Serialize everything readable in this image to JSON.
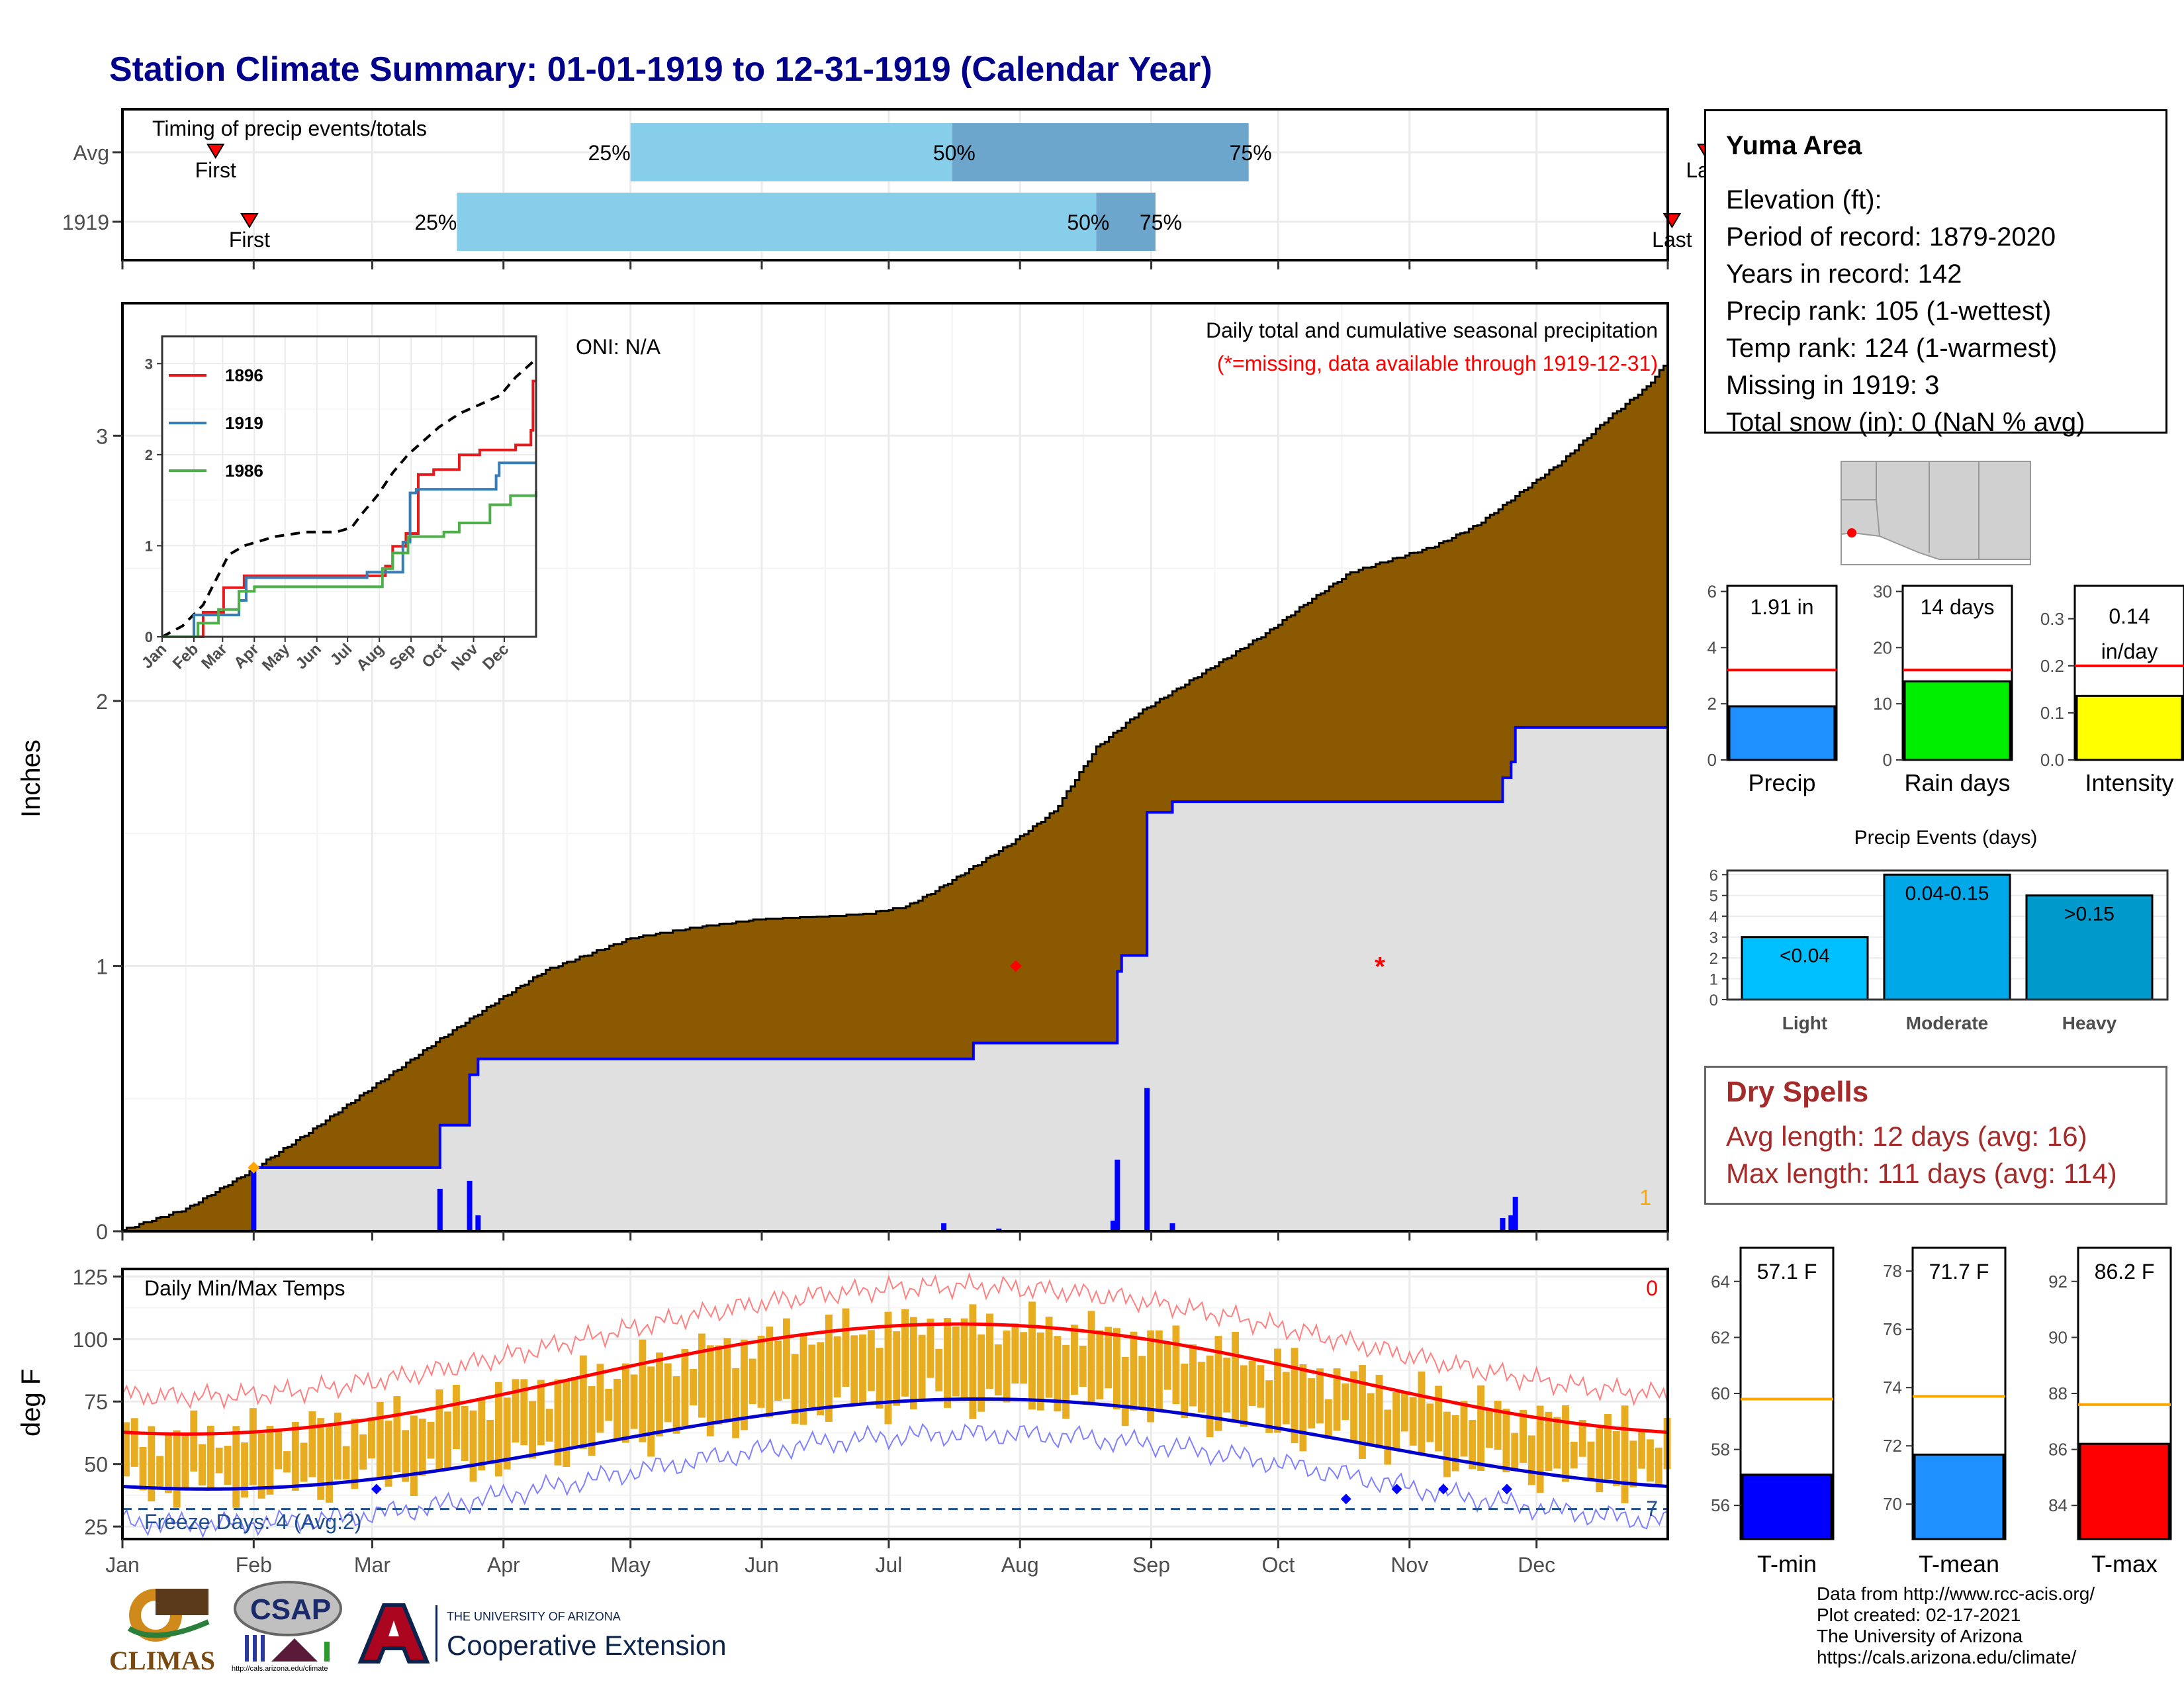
{
  "title": "Station Climate Summary: 01-01-1919 to 12-31-1919 (Calendar Year)",
  "timing": {
    "label": "Timing of precip events/totals",
    "rows": [
      {
        "name": "Avg",
        "first_day": 22,
        "last_day": 374,
        "p25": 120,
        "p50": 196,
        "p75": 266
      },
      {
        "name": "1919",
        "first_day": 30,
        "last_day": 366,
        "p25": 79,
        "p50": 230,
        "p75": 244
      }
    ],
    "first_label": "First",
    "last_label": "Last",
    "pct_labels": [
      "25%",
      "50%",
      "75%"
    ]
  },
  "precip_panel": {
    "ylabel": "Inches",
    "oni": "ONI: N/A",
    "title": "Daily total and cumulative seasonal precipitation",
    "subtitle": "(*=missing, data available through 1919-12-31)",
    "corner_count": "1",
    "y_ticks": [
      "0",
      "1",
      "2",
      "3"
    ],
    "ylim": [
      0,
      3.5
    ]
  },
  "inset": {
    "series": [
      {
        "name": "1896",
        "color": "#e41a1c"
      },
      {
        "name": "1919",
        "color": "#377eb8"
      },
      {
        "name": "1986",
        "color": "#4daf4a"
      }
    ],
    "y_ticks": [
      "0",
      "1",
      "2",
      "3"
    ],
    "x_ticks": [
      "Jan",
      "Feb",
      "Mar",
      "Apr",
      "May",
      "Jun",
      "Jul",
      "Aug",
      "Sep",
      "Oct",
      "Nov",
      "Dec"
    ]
  },
  "temp_panel": {
    "ylabel": "deg F",
    "title": "Daily Min/Max Temps",
    "corner_count": "0",
    "freeze_label": "Freeze Days: 4 (Avg:2)",
    "freeze_count": "7",
    "y_ticks": [
      "25",
      "50",
      "75",
      "100",
      "125"
    ],
    "ylim": [
      20,
      128
    ]
  },
  "months": [
    "Jan",
    "Feb",
    "Mar",
    "Apr",
    "May",
    "Jun",
    "Jul",
    "Aug",
    "Sep",
    "Oct",
    "Nov",
    "Dec"
  ],
  "station": {
    "name": "Yuma Area",
    "lines": [
      "Elevation (ft):",
      "Period of record: 1879-2020",
      "Years in record: 142",
      "Precip rank: 105 (1-wettest)",
      "Temp rank: 124 (1-warmest)",
      "Missing in 1919: 3",
      "Total snow (in): 0 (NaN % avg)"
    ]
  },
  "precip_bars": [
    {
      "label": "Precip",
      "value_text": "1.91 in",
      "value": 1.91,
      "avg": 3.2,
      "max": 6.2,
      "ticks": [
        "0",
        "2",
        "4",
        "6"
      ],
      "tick_values": [
        0,
        2,
        4,
        6
      ],
      "color": "#1e90ff"
    },
    {
      "label": "Rain days",
      "value_text": "14 days",
      "value": 14,
      "avg": 16,
      "max": 31,
      "ticks": [
        "0",
        "10",
        "20",
        "30"
      ],
      "tick_values": [
        0,
        10,
        20,
        30
      ],
      "color": "#00ee00"
    },
    {
      "label": "Intensity",
      "value_text": "0.14 in/day",
      "value": 0.136,
      "avg": 0.2,
      "max": 0.37,
      "ticks": [
        "0.0",
        "0.1",
        "0.2",
        "0.3"
      ],
      "tick_values": [
        0,
        0.1,
        0.2,
        0.3
      ],
      "color": "#ffff00"
    }
  ],
  "precip_events": {
    "title": "Precip Events (days)",
    "categories": [
      "Light",
      "Moderate",
      "Heavy"
    ],
    "range_labels": [
      "<0.04",
      "0.04-0.15",
      ">0.15"
    ],
    "values": [
      3,
      6,
      5
    ],
    "colors": [
      "#00bfff",
      "#00a8e8",
      "#0099cc"
    ],
    "y_ticks": [
      "0",
      "1",
      "2",
      "3",
      "4",
      "5",
      "6"
    ]
  },
  "dry_spells": {
    "title": "Dry Spells",
    "avg_line": "Avg length: 12 days (avg: 16)",
    "max_line": "Max length: 111 days (avg: 114)"
  },
  "temp_bars": [
    {
      "label": "T-min",
      "value_text": "57.1 F",
      "value": 57.1,
      "avg": 59.8,
      "min": 54.8,
      "max": 65.2,
      "ticks": [
        "56",
        "58",
        "60",
        "62",
        "64"
      ],
      "tick_values": [
        56,
        58,
        60,
        62,
        64
      ],
      "color": "#0000ff"
    },
    {
      "label": "T-mean",
      "value_text": "71.7 F",
      "value": 71.7,
      "avg": 73.7,
      "min": 68.8,
      "max": 78.8,
      "ticks": [
        "70",
        "72",
        "74",
        "76",
        "78"
      ],
      "tick_values": [
        70,
        72,
        74,
        76,
        78
      ],
      "color": "#1e90ff"
    },
    {
      "label": "T-max",
      "value_text": "86.2 F",
      "value": 86.2,
      "avg": 87.6,
      "min": 82.8,
      "max": 93.2,
      "ticks": [
        "84",
        "86",
        "88",
        "90",
        "92"
      ],
      "tick_values": [
        84,
        86,
        88,
        90,
        92
      ],
      "color": "#ff0000"
    }
  ],
  "footer": {
    "lines": [
      "Data from http://www.rcc-acis.org/",
      "Plot created: 02-17-2021",
      "The University of Arizona",
      "https://cals.arizona.edu/climate/"
    ]
  },
  "logos": {
    "climas": "CLIMAS",
    "csap": "CSAP",
    "csap_url": "http://cals.arizona.edu/climate",
    "ua_small": "THE UNIVERSITY OF ARIZONA",
    "ua_big": "Cooperative Extension"
  },
  "chart_data": {
    "type": "area",
    "title": "Daily total and cumulative seasonal precipitation",
    "ylabel": "Inches",
    "ylim": [
      0,
      3.5
    ],
    "x_unit": "day of year",
    "cumulative_avg": [
      [
        0,
        0
      ],
      [
        15,
        0.08
      ],
      [
        30,
        0.22
      ],
      [
        45,
        0.38
      ],
      [
        60,
        0.55
      ],
      [
        75,
        0.72
      ],
      [
        90,
        0.88
      ],
      [
        100,
        0.98
      ],
      [
        110,
        1.04
      ],
      [
        120,
        1.1
      ],
      [
        135,
        1.14
      ],
      [
        150,
        1.17
      ],
      [
        165,
        1.18
      ],
      [
        175,
        1.19
      ],
      [
        185,
        1.22
      ],
      [
        192,
        1.28
      ],
      [
        200,
        1.36
      ],
      [
        210,
        1.46
      ],
      [
        220,
        1.58
      ],
      [
        225,
        1.7
      ],
      [
        230,
        1.82
      ],
      [
        240,
        1.95
      ],
      [
        250,
        2.05
      ],
      [
        260,
        2.15
      ],
      [
        270,
        2.25
      ],
      [
        280,
        2.37
      ],
      [
        290,
        2.48
      ],
      [
        300,
        2.53
      ],
      [
        310,
        2.58
      ],
      [
        320,
        2.66
      ],
      [
        330,
        2.78
      ],
      [
        340,
        2.9
      ],
      [
        350,
        3.05
      ],
      [
        360,
        3.18
      ],
      [
        365,
        3.28
      ]
    ],
    "cumulative_1919": [
      [
        0,
        0
      ],
      [
        30,
        0
      ],
      [
        31,
        0.24
      ],
      [
        74,
        0.24
      ],
      [
        75,
        0.4
      ],
      [
        81,
        0.4
      ],
      [
        82,
        0.59
      ],
      [
        84,
        0.65
      ],
      [
        200,
        0.65
      ],
      [
        201,
        0.71
      ],
      [
        234,
        0.71
      ],
      [
        235,
        0.98
      ],
      [
        236,
        1.04
      ],
      [
        241,
        1.04
      ],
      [
        242,
        1.58
      ],
      [
        248,
        1.62
      ],
      [
        325,
        1.62
      ],
      [
        326,
        1.71
      ],
      [
        328,
        1.77
      ],
      [
        329,
        1.9
      ],
      [
        365,
        1.91
      ]
    ],
    "daily_1919": [
      [
        31,
        0.24
      ],
      [
        75,
        0.16
      ],
      [
        82,
        0.19
      ],
      [
        84,
        0.06
      ],
      [
        194,
        0.03
      ],
      [
        207,
        0.01
      ],
      [
        234,
        0.04
      ],
      [
        235,
        0.27
      ],
      [
        242,
        0.54
      ],
      [
        248,
        0.03
      ],
      [
        326,
        0.05
      ],
      [
        328,
        0.06
      ],
      [
        329,
        0.13
      ]
    ],
    "missing_days": [
      211,
      297
    ]
  }
}
